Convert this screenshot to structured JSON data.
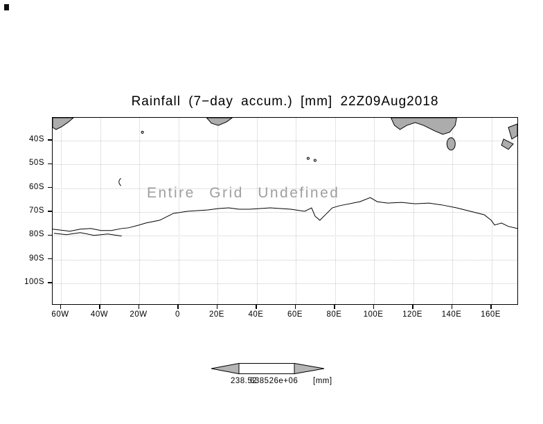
{
  "chart_data": {
    "type": "heatmap",
    "title": "Rainfall (7−day accum.) [mm] 22Z09Aug2018",
    "variable": "Rainfall (7−day accum.)",
    "units": "[mm]",
    "timestamp": "22Z09Aug2018",
    "annotation": "Entire Grid Undefined",
    "data": "undefined (no valid grid points plotted)",
    "grid": true,
    "x_ticks": [
      "60W",
      "40W",
      "20W",
      "0",
      "20E",
      "40E",
      "60E",
      "80E",
      "100E",
      "120E",
      "140E",
      "160E"
    ],
    "y_ticks": [
      "40S",
      "50S",
      "60S",
      "70S",
      "80S",
      "90S",
      "100S"
    ],
    "colorbar": {
      "label1": "238.52",
      "label2": "638526e+06",
      "units": "[mm]"
    }
  }
}
